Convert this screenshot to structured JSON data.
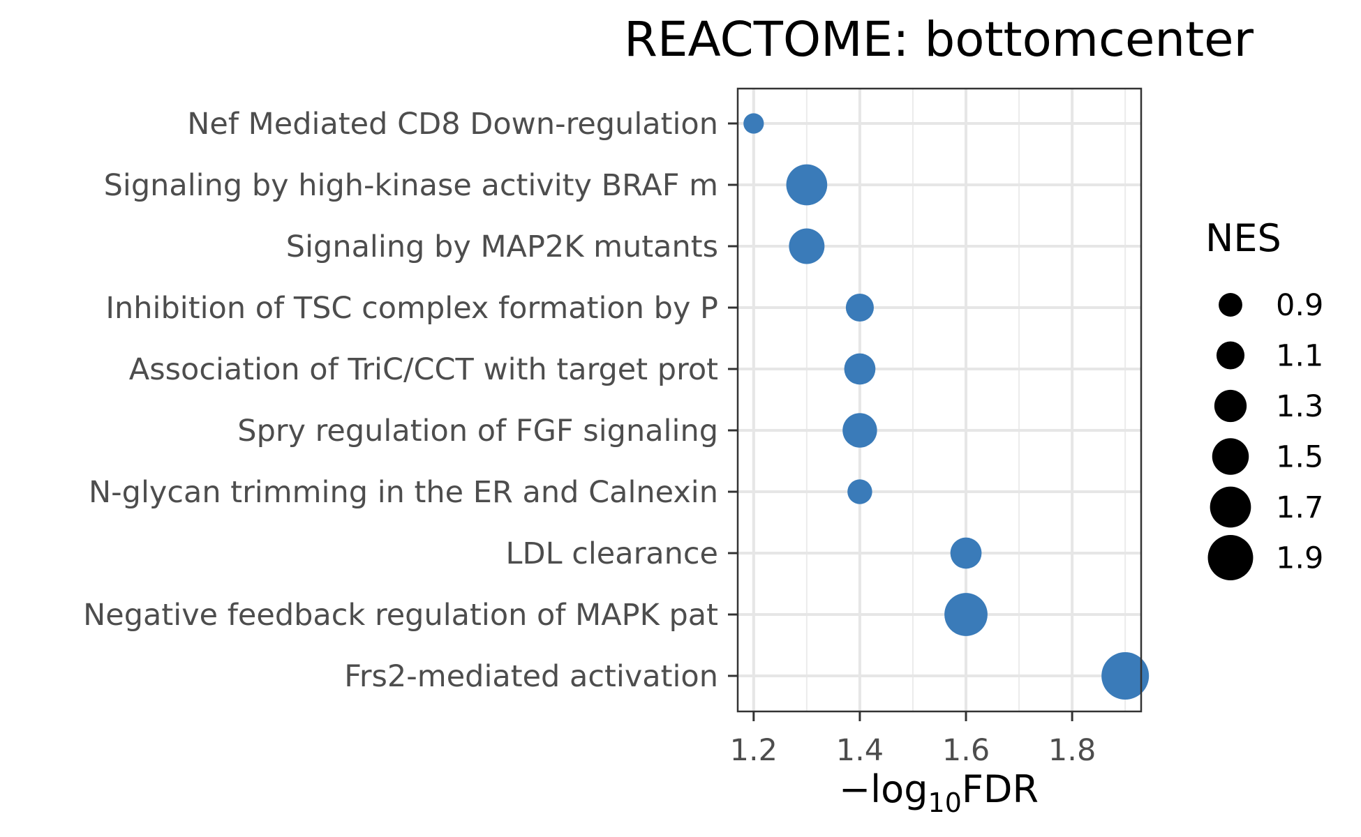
{
  "chart_data": {
    "type": "scatter",
    "title": "REACTOME: bottomcenter",
    "xlabel_prefix": "−log",
    "xlabel_sub": "10",
    "xlabel_suffix": "FDR",
    "ylabel": "",
    "xlim": [
      1.17,
      1.93
    ],
    "xticks": [
      1.2,
      1.4,
      1.6,
      1.8
    ],
    "x_minor": [
      1.3,
      1.5,
      1.7,
      1.9
    ],
    "grid": true,
    "point_color": "#3a7bb9",
    "categories": [
      "Nef Mediated CD8 Down-regulation",
      "Signaling by high-kinase activity BRAF m",
      "Signaling by MAP2K mutants",
      "Inhibition of TSC complex formation by P",
      "Association of TriC/CCT with target prot",
      "Spry regulation of FGF signaling",
      "N-glycan trimming in the ER and Calnexin",
      "LDL clearance",
      "Negative feedback regulation of MAPK pat",
      "Frs2-mediated activation"
    ],
    "points": [
      {
        "category": "Nef Mediated CD8 Down-regulation",
        "x": 1.2,
        "nes": 0.75
      },
      {
        "category": "Signaling by high-kinase activity BRAF m",
        "x": 1.3,
        "nes": 1.7
      },
      {
        "category": "Signaling by MAP2K mutants",
        "x": 1.3,
        "nes": 1.45
      },
      {
        "category": "Inhibition of TSC complex formation by P",
        "x": 1.4,
        "nes": 1.1
      },
      {
        "category": "Association of TriC/CCT with target prot",
        "x": 1.4,
        "nes": 1.25
      },
      {
        "category": "Spry regulation of FGF signaling",
        "x": 1.4,
        "nes": 1.4
      },
      {
        "category": "N-glycan trimming in the ER and Calnexin",
        "x": 1.4,
        "nes": 0.95
      },
      {
        "category": "LDL clearance",
        "x": 1.6,
        "nes": 1.25
      },
      {
        "category": "Negative feedback regulation of MAPK pat",
        "x": 1.6,
        "nes": 1.8
      },
      {
        "category": "Frs2-mediated activation",
        "x": 1.9,
        "nes": 2.0
      }
    ],
    "legend": {
      "title": "NES",
      "position": "right",
      "values": [
        0.9,
        1.1,
        1.3,
        1.5,
        1.7,
        1.9
      ],
      "labels": [
        "0.9",
        "1.1",
        "1.3",
        "1.5",
        "1.7",
        "1.9"
      ],
      "color": "#000000"
    }
  }
}
